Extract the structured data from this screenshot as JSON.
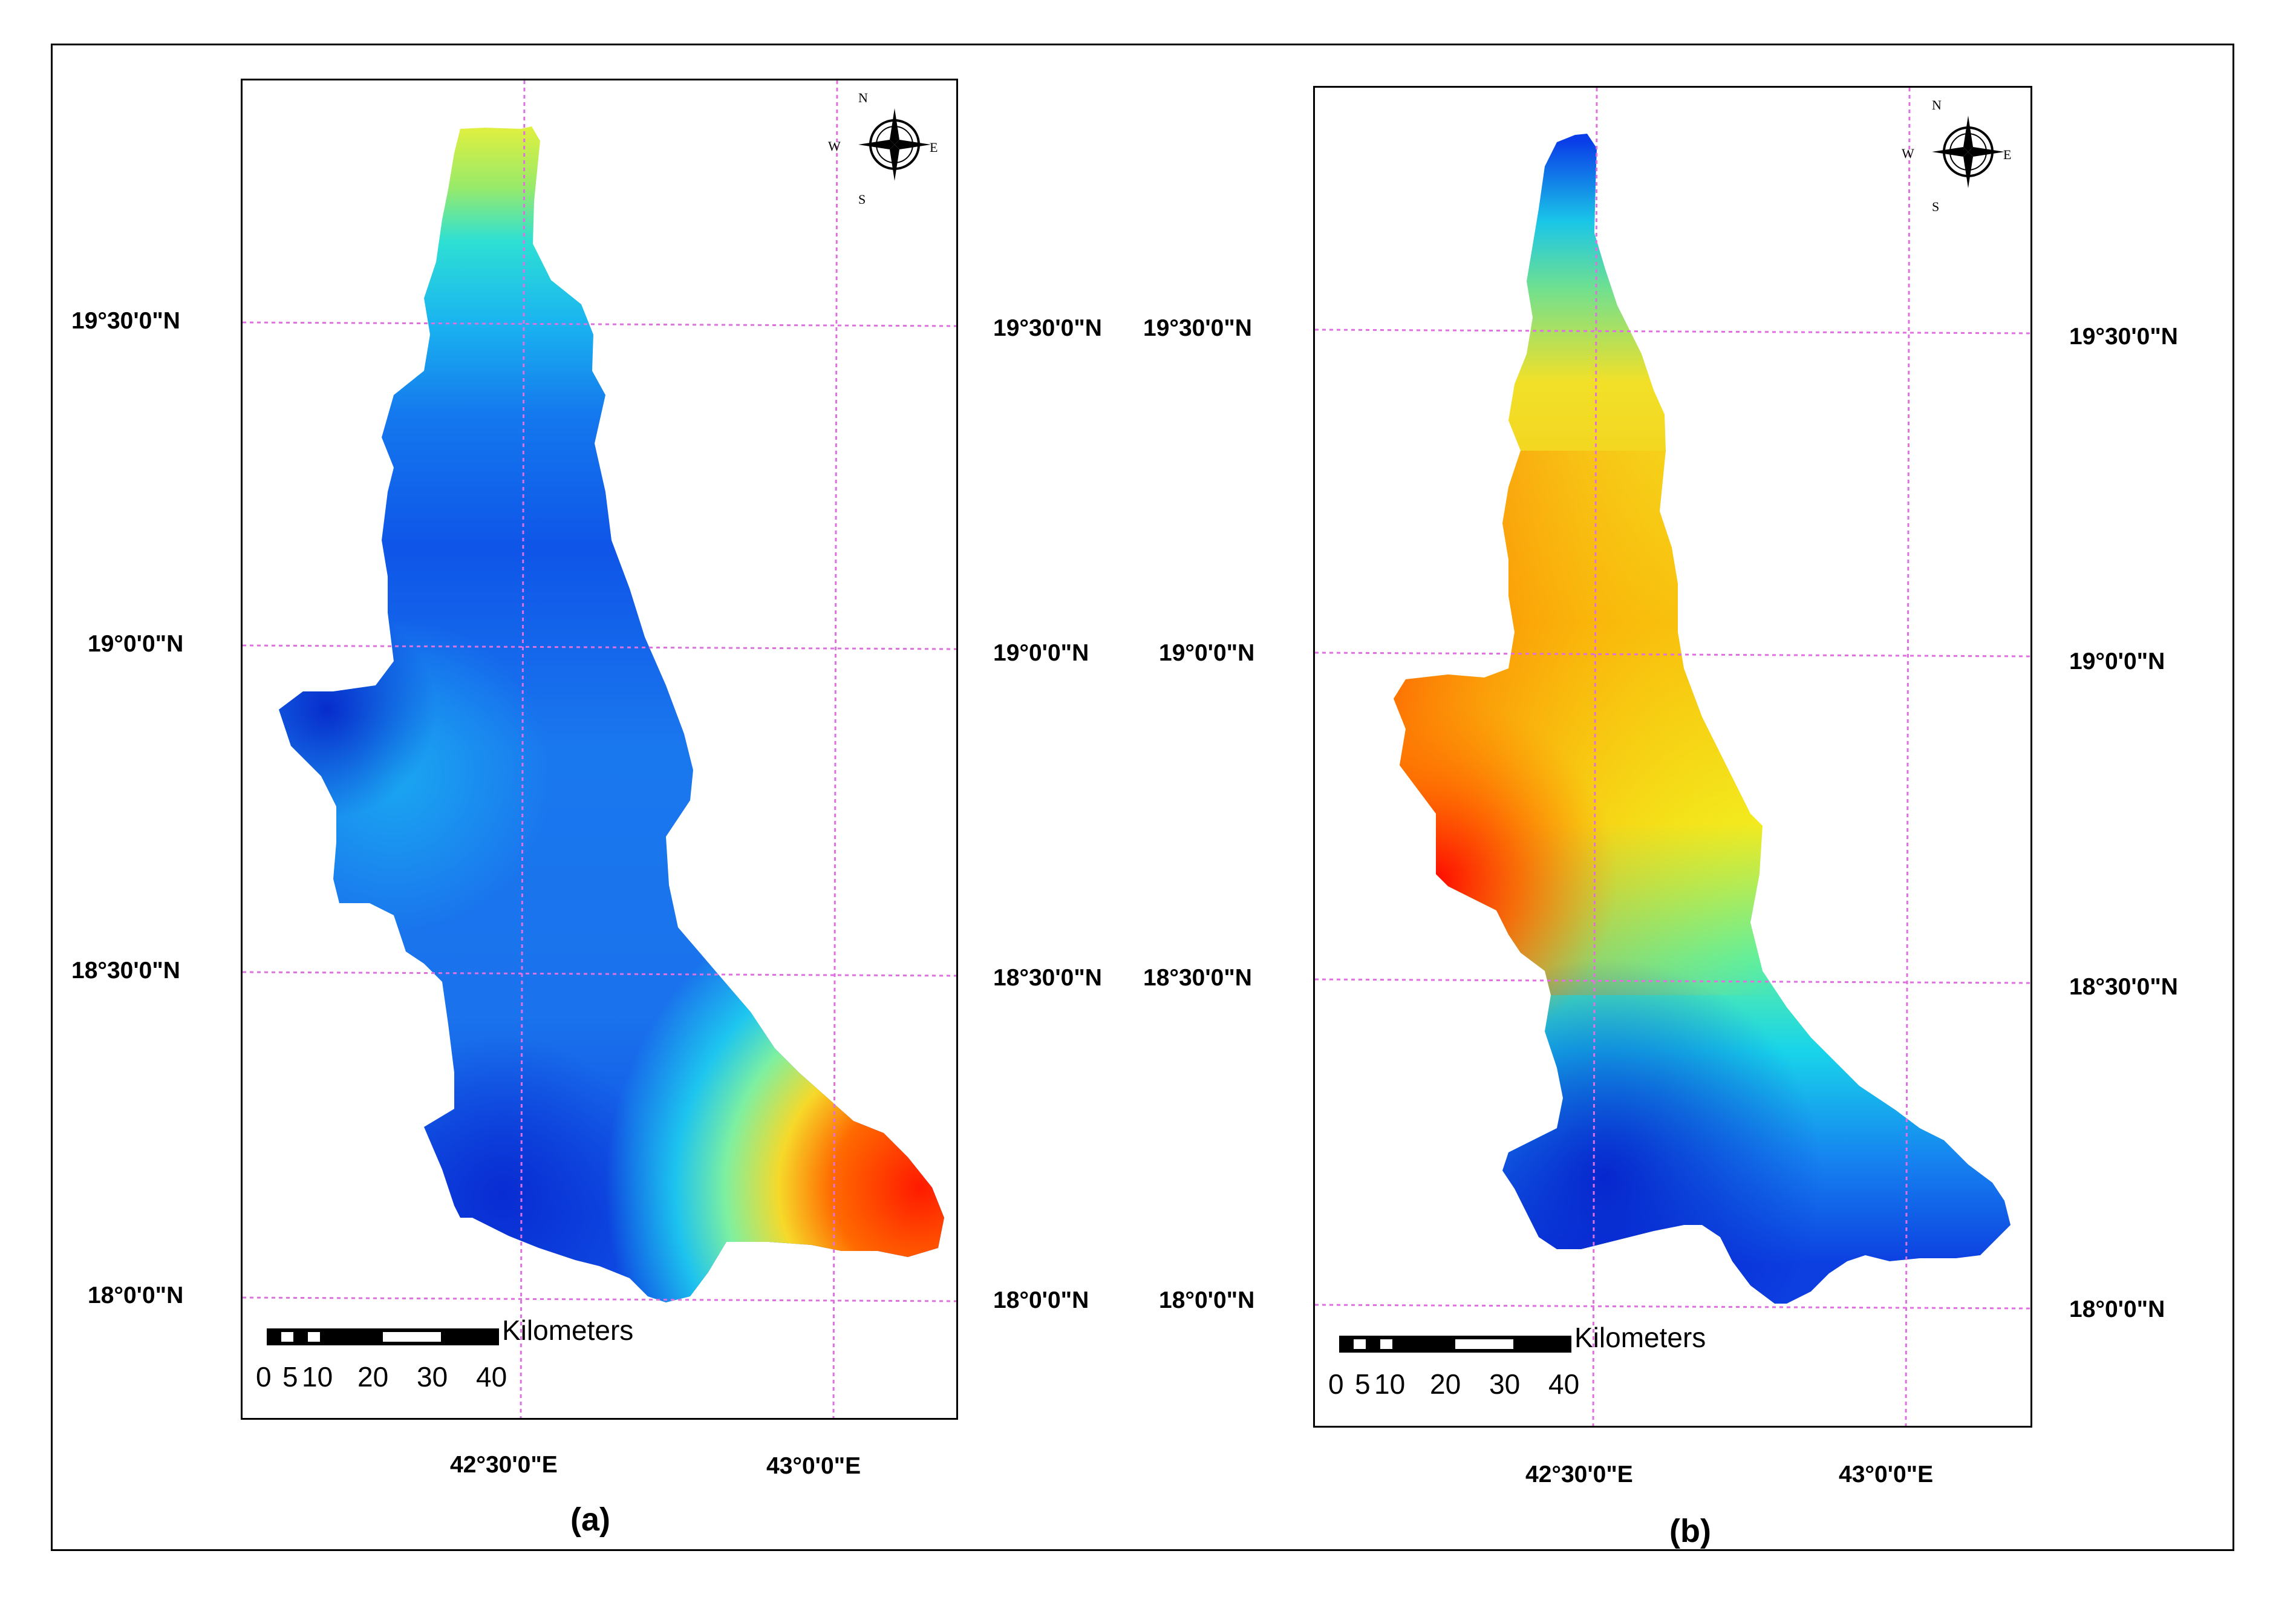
{
  "panels": [
    {
      "id": "a",
      "caption": "(a)",
      "lat_labels_left": [
        "19°30'0\"N",
        "19°0'0\"N",
        "18°30'0\"N",
        "18°0'0\"N"
      ],
      "lat_labels_right": [
        "19°30'0\"N",
        "19°0'0\"N",
        "18°30'0\"N",
        "18°0'0\"N"
      ],
      "lon_labels": [
        "42°30'0\"E",
        "43°0'0\"E"
      ],
      "scale_bar": {
        "unit": "Kilometers",
        "ticks": [
          "0",
          "5",
          "10",
          "20",
          "30",
          "40"
        ]
      },
      "compass": {
        "n": "N",
        "s": "S",
        "e": "E",
        "w": "W"
      },
      "colors": {
        "north_tip": "#e8f03a",
        "upper": "#2ad6e6",
        "middle": "#1f8ff0",
        "west_lobe": "#0a3fe0",
        "southeast": "#ff2a00"
      }
    },
    {
      "id": "b",
      "caption": "(b)",
      "lat_labels_left": [
        "19°30'0\"N",
        "19°0'0\"N",
        "18°30'0\"N",
        "18°0'0\"N"
      ],
      "lat_labels_right": [
        "19°30'0\"N",
        "19°0'0\"N",
        "18°30'0\"N",
        "18°0'0\"N"
      ],
      "lon_labels": [
        "42°30'0\"E",
        "43°0'0\"E"
      ],
      "scale_bar": {
        "unit": "Kilometers",
        "ticks": [
          "0",
          "5",
          "10",
          "20",
          "30",
          "40"
        ]
      },
      "compass": {
        "n": "N",
        "s": "S",
        "e": "E",
        "w": "W"
      },
      "colors": {
        "north_tip": "#0a3fe0",
        "upper": "#f5e020",
        "middle": "#f7a000",
        "west_lobe": "#ff1a00",
        "southeast": "#1f6ff0"
      }
    }
  ]
}
